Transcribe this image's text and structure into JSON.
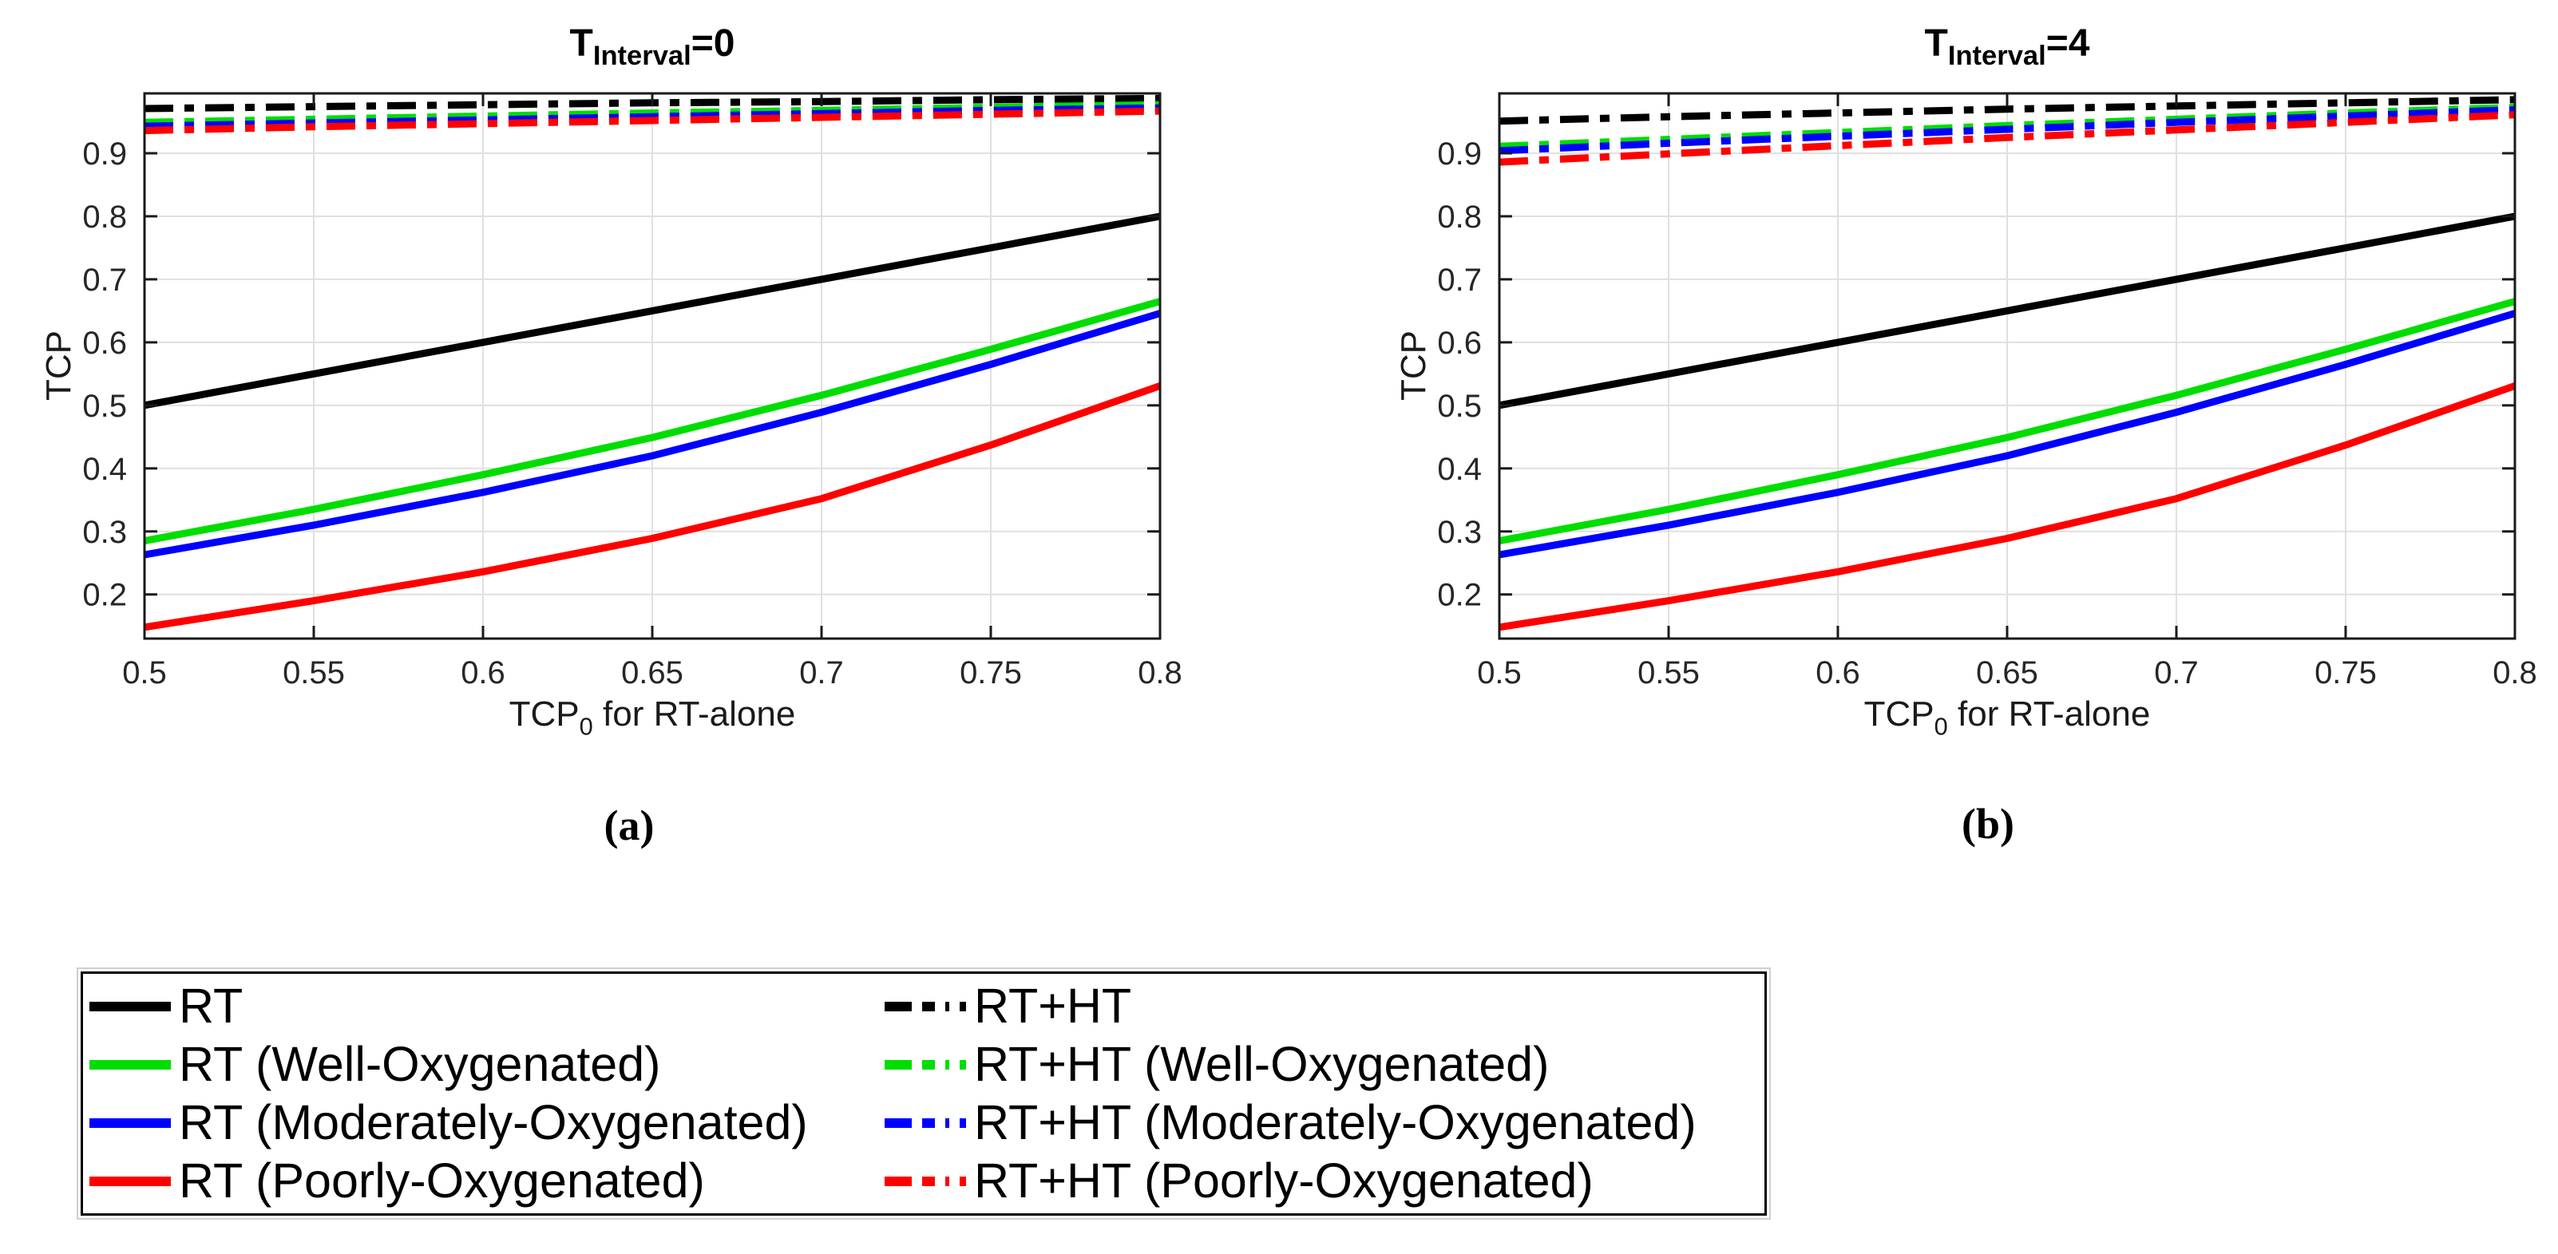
{
  "colors": {
    "black": "#000000",
    "green": "#00dd00",
    "blue": "#0000ff",
    "red": "#ff0000",
    "grid": "#e0e0e0",
    "axis": "#1a1a1a",
    "tick_text": "#262626"
  },
  "captions": {
    "a": "(a)",
    "b": "(b)"
  },
  "chart_data": [
    {
      "id": "a",
      "type": "line",
      "title": "T_Interval=0",
      "title_parts": {
        "main": "T",
        "sub": "Interval",
        "eq": "=0"
      },
      "xlabel": "TCP_0 for RT-alone",
      "xlabel_parts": {
        "main": "TCP",
        "sub": "0",
        "rest": " for RT-alone"
      },
      "ylabel": "TCP",
      "xlim": [
        0.5,
        0.8
      ],
      "ylim": [
        0.13,
        0.995
      ],
      "grid": true,
      "legend_position": "shared-bottom",
      "xticks": [
        0.5,
        0.55,
        0.6,
        0.65,
        0.7,
        0.75,
        0.8
      ],
      "xtick_labels": [
        "0.5",
        "0.55",
        "0.6",
        "0.65",
        "0.7",
        "0.75",
        "0.8"
      ],
      "yticks": [
        0.2,
        0.3,
        0.4,
        0.5,
        0.6,
        0.7,
        0.8,
        0.9
      ],
      "ytick_labels": [
        "0.2",
        "0.3",
        "0.4",
        "0.5",
        "0.6",
        "0.7",
        "0.8",
        "0.9"
      ],
      "x": [
        0.5,
        0.55,
        0.6,
        0.65,
        0.7,
        0.75,
        0.8
      ],
      "series": [
        {
          "name": "RT",
          "color_key": "black",
          "style": "solid",
          "values": [
            0.5,
            0.55,
            0.6,
            0.65,
            0.7,
            0.75,
            0.8
          ]
        },
        {
          "name": "RT (Well-Oxygenated)",
          "color_key": "green",
          "style": "solid",
          "values": [
            0.285,
            0.335,
            0.39,
            0.449,
            0.516,
            0.589,
            0.665
          ]
        },
        {
          "name": "RT (Moderately-Oxygenated)",
          "color_key": "blue",
          "style": "solid",
          "values": [
            0.263,
            0.31,
            0.362,
            0.42,
            0.489,
            0.565,
            0.646
          ]
        },
        {
          "name": "RT (Poorly-Oxygenated)",
          "color_key": "red",
          "style": "solid",
          "values": [
            0.148,
            0.19,
            0.236,
            0.289,
            0.352,
            0.437,
            0.531
          ]
        },
        {
          "name": "RT+HT",
          "color_key": "black",
          "style": "dashdot",
          "values": [
            0.971,
            0.974,
            0.977,
            0.98,
            0.982,
            0.985,
            0.987
          ]
        },
        {
          "name": "RT+HT (Well-Oxygenated)",
          "color_key": "green",
          "style": "dashdot",
          "values": [
            0.949,
            0.954,
            0.959,
            0.964,
            0.968,
            0.973,
            0.977
          ]
        },
        {
          "name": "RT+HT (Moderately-Oxygenated)",
          "color_key": "blue",
          "style": "dashdot",
          "values": [
            0.943,
            0.948,
            0.953,
            0.958,
            0.963,
            0.968,
            0.972
          ]
        },
        {
          "name": "RT+HT (Poorly-Oxygenated)",
          "color_key": "red",
          "style": "dashdot",
          "values": [
            0.936,
            0.942,
            0.947,
            0.952,
            0.957,
            0.962,
            0.967
          ]
        }
      ]
    },
    {
      "id": "b",
      "type": "line",
      "title": "T_Interval=4",
      "title_parts": {
        "main": "T",
        "sub": "Interval",
        "eq": "=4"
      },
      "xlabel": "TCP_0 for RT-alone",
      "xlabel_parts": {
        "main": "TCP",
        "sub": "0",
        "rest": " for RT-alone"
      },
      "ylabel": "TCP",
      "xlim": [
        0.5,
        0.8
      ],
      "ylim": [
        0.13,
        0.995
      ],
      "grid": true,
      "legend_position": "shared-bottom",
      "xticks": [
        0.5,
        0.55,
        0.6,
        0.65,
        0.7,
        0.75,
        0.8
      ],
      "xtick_labels": [
        "0.5",
        "0.55",
        "0.6",
        "0.65",
        "0.7",
        "0.75",
        "0.8"
      ],
      "yticks": [
        0.2,
        0.3,
        0.4,
        0.5,
        0.6,
        0.7,
        0.8,
        0.9
      ],
      "ytick_labels": [
        "0.2",
        "0.3",
        "0.4",
        "0.5",
        "0.6",
        "0.7",
        "0.8",
        "0.9"
      ],
      "x": [
        0.5,
        0.55,
        0.6,
        0.65,
        0.7,
        0.75,
        0.8
      ],
      "series": [
        {
          "name": "RT",
          "color_key": "black",
          "style": "solid",
          "values": [
            0.5,
            0.55,
            0.6,
            0.65,
            0.7,
            0.75,
            0.8
          ]
        },
        {
          "name": "RT (Well-Oxygenated)",
          "color_key": "green",
          "style": "solid",
          "values": [
            0.285,
            0.335,
            0.39,
            0.449,
            0.516,
            0.589,
            0.665
          ]
        },
        {
          "name": "RT (Moderately-Oxygenated)",
          "color_key": "blue",
          "style": "solid",
          "values": [
            0.263,
            0.31,
            0.362,
            0.42,
            0.489,
            0.565,
            0.646
          ]
        },
        {
          "name": "RT (Poorly-Oxygenated)",
          "color_key": "red",
          "style": "solid",
          "values": [
            0.148,
            0.19,
            0.236,
            0.289,
            0.352,
            0.437,
            0.531
          ]
        },
        {
          "name": "RT+HT",
          "color_key": "black",
          "style": "dashdot",
          "values": [
            0.951,
            0.958,
            0.964,
            0.97,
            0.975,
            0.98,
            0.985
          ]
        },
        {
          "name": "RT+HT (Well-Oxygenated)",
          "color_key": "green",
          "style": "dashdot",
          "values": [
            0.911,
            0.922,
            0.933,
            0.944,
            0.954,
            0.964,
            0.973
          ]
        },
        {
          "name": "RT+HT (Moderately-Oxygenated)",
          "color_key": "blue",
          "style": "dashdot",
          "values": [
            0.904,
            0.916,
            0.927,
            0.938,
            0.949,
            0.959,
            0.969
          ]
        },
        {
          "name": "RT+HT (Poorly-Oxygenated)",
          "color_key": "red",
          "style": "dashdot",
          "values": [
            0.886,
            0.899,
            0.912,
            0.925,
            0.937,
            0.949,
            0.961
          ]
        }
      ]
    }
  ],
  "legend": {
    "columns": [
      [
        {
          "label": "RT",
          "color_key": "black",
          "style": "solid"
        },
        {
          "label": "RT (Well-Oxygenated)",
          "color_key": "green",
          "style": "solid"
        },
        {
          "label": "RT (Moderately-Oxygenated)",
          "color_key": "blue",
          "style": "solid"
        },
        {
          "label": "RT (Poorly-Oxygenated)",
          "color_key": "red",
          "style": "solid"
        }
      ],
      [
        {
          "label": "RT+HT",
          "color_key": "black",
          "style": "dashdot"
        },
        {
          "label": "RT+HT (Well-Oxygenated)",
          "color_key": "green",
          "style": "dashdot"
        },
        {
          "label": "RT+HT (Moderately-Oxygenated)",
          "color_key": "blue",
          "style": "dashdot"
        },
        {
          "label": "RT+HT (Poorly-Oxygenated)",
          "color_key": "red",
          "style": "dashdot"
        }
      ]
    ]
  }
}
